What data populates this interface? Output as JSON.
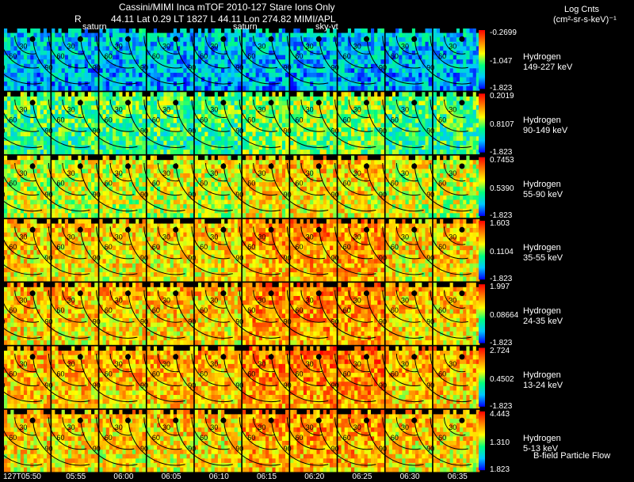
{
  "header": {
    "title": "Cassini/MIMI Inca mTOF  2010-127   Stare    Ions Only",
    "subline_r": "R",
    "subline": "44.11 Lat 0.29 LT 1827 L      44.11 Lon         274.82  MIMI/APL",
    "units_line1": "Log Cnts",
    "units_line2": "(cm²-sr-s-keV)⁻¹"
  },
  "column_labels": [
    "saturn",
    "saturn",
    "sky-vt"
  ],
  "contour_labels": [
    "30",
    "60",
    "90"
  ],
  "footer": {
    "flow_label": "B-field Particle Flow"
  },
  "chart_data": {
    "type": "heatmap",
    "title": "Cassini/MIMI Inca mTOF  2010-127   Stare    Ions Only",
    "x_ticks": [
      "127T05:50",
      "05:55",
      "06:00",
      "06:05",
      "06:10",
      "06:15",
      "06:20",
      "06:25",
      "06:30",
      "06:35"
    ],
    "colormap": [
      "#0000ff",
      "#00c8ff",
      "#00ff7f",
      "#ffff00",
      "#ff8000",
      "#ff0000"
    ],
    "rows": [
      {
        "species": "Hydrogen",
        "energy": "149-227 keV",
        "max": "-0.2699",
        "mid": "-1.047",
        "min": "-1.823",
        "level": 0.25
      },
      {
        "species": "Hydrogen",
        "energy": "90-149 keV",
        "max": "0.2019",
        "mid": "0.8107",
        "min": "-1.823",
        "level": 0.45
      },
      {
        "species": "Hydrogen",
        "energy": "55-90 keV",
        "max": "0.7453",
        "mid": "0.5390",
        "min": "-1.823",
        "level": 0.62
      },
      {
        "species": "Hydrogen",
        "energy": "35-55 keV",
        "max": "1.603",
        "mid": "0.1104",
        "min": "-1.823",
        "level": 0.7
      },
      {
        "species": "Hydrogen",
        "energy": "24-35 keV",
        "max": "1.997",
        "mid": "0.08664",
        "min": "-1.823",
        "level": 0.72
      },
      {
        "species": "Hydrogen",
        "energy": "13-24 keV",
        "max": "2.724",
        "mid": "0.4502",
        "min": "-1.823",
        "level": 0.74
      },
      {
        "species": "Hydrogen",
        "energy": "5-13 keV",
        "max": "4.443",
        "mid": "1.310",
        "min": "1.823",
        "level": 0.7
      }
    ]
  }
}
